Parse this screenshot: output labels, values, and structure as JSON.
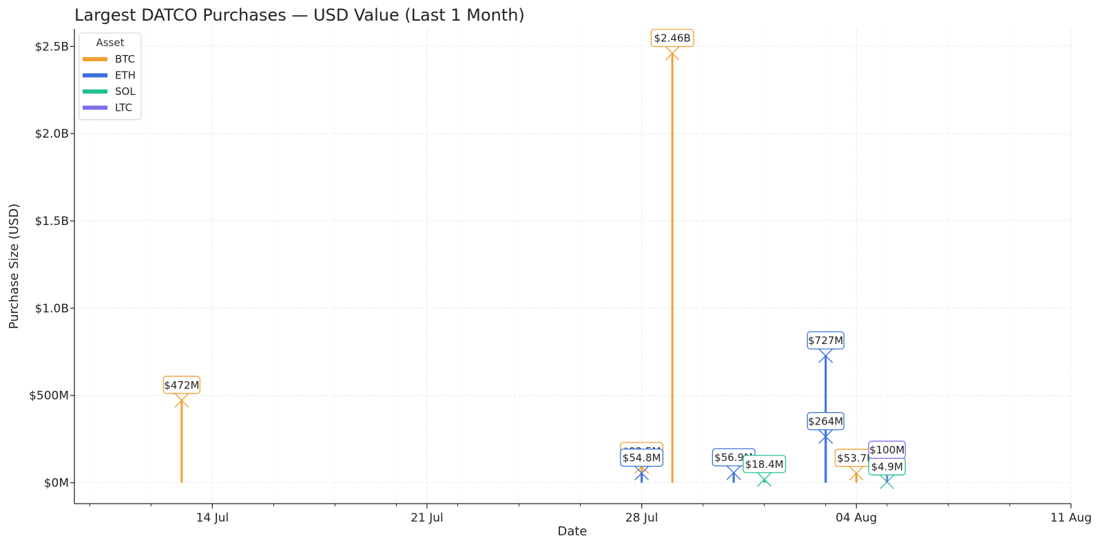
{
  "chart_data": {
    "type": "stem",
    "title": "Largest DATCO Purchases — USD Value (Last 1 Month)",
    "xlabel": "Date",
    "ylabel": "Purchase Size (USD)",
    "x_range": [
      "2025-07-09T12:00",
      "2025-08-11T00:00"
    ],
    "ylim": [
      -120000000,
      2600000000
    ],
    "x_ticks": [
      {
        "date": "2025-07-14",
        "label": "14 Jul"
      },
      {
        "date": "2025-07-21",
        "label": "21 Jul"
      },
      {
        "date": "2025-07-28",
        "label": "28 Jul"
      },
      {
        "date": "2025-08-04",
        "label": "04 Aug"
      },
      {
        "date": "2025-08-11",
        "label": "11 Aug"
      }
    ],
    "y_ticks": [
      {
        "value": 0,
        "label": "$0M"
      },
      {
        "value": 500000000,
        "label": "$500M"
      },
      {
        "value": 1000000000,
        "label": "$1.0B"
      },
      {
        "value": 1500000000,
        "label": "$1.5B"
      },
      {
        "value": 2000000000,
        "label": "$2.0B"
      },
      {
        "value": 2500000000,
        "label": "$2.5B"
      }
    ],
    "grid": true,
    "legend": {
      "title": "Asset",
      "placement": "top-left"
    },
    "series": [
      {
        "name": "BTC",
        "color": "#f0a030",
        "points": [
          {
            "x": "2025-07-13",
            "y": 472000000,
            "label": "$472M"
          },
          {
            "x": "2025-07-28",
            "y": 92500000,
            "label": "$92.5M"
          },
          {
            "x": "2025-07-29",
            "y": 2460000000,
            "label": "$2.46B"
          },
          {
            "x": "2025-08-04",
            "y": 53700000,
            "label": "$53.7M"
          }
        ]
      },
      {
        "name": "ETH",
        "color": "#3a6fdc",
        "points": [
          {
            "x": "2025-07-28",
            "y": 54800000,
            "label": "$54.8M"
          },
          {
            "x": "2025-07-31",
            "y": 56900000,
            "label": "$56.9M"
          },
          {
            "x": "2025-08-03",
            "y": 727000000,
            "label": "$727M"
          },
          {
            "x": "2025-08-03",
            "y": 264000000,
            "label": "$264M"
          }
        ]
      },
      {
        "name": "SOL",
        "color": "#20c090",
        "points": [
          {
            "x": "2025-08-01",
            "y": 18400000,
            "label": "$18.4M"
          },
          {
            "x": "2025-08-05",
            "y": 4900000,
            "label": "$4.9M"
          }
        ]
      },
      {
        "name": "LTC",
        "color": "#7b6fe8",
        "points": [
          {
            "x": "2025-08-05",
            "y": 100000000,
            "label": "$100M"
          }
        ]
      }
    ]
  }
}
